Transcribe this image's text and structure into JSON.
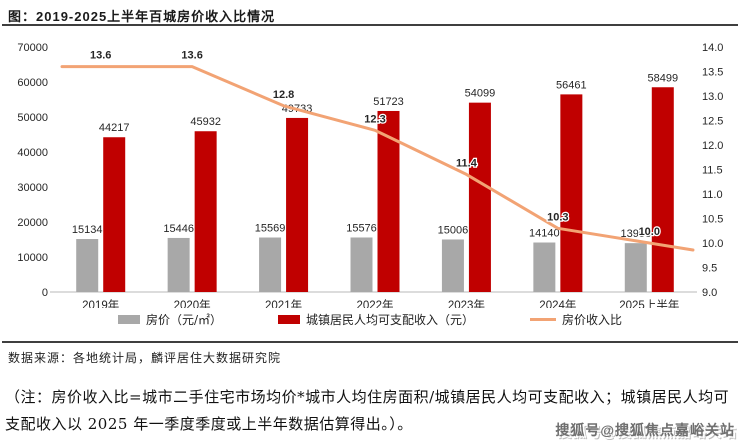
{
  "page": {
    "title": "图：2019-2025上半年百城房价收入比情况",
    "source": "数据来源：各地统计局，麟评居住大数据研究院",
    "note": "（注：房价收入比=城市二手住宅市场均价*城市人均住房面积/城镇居民人均可支配收入；城镇居民人均可支配收入以 2025 年一季度季度或上半年数据估算得出。）。",
    "watermark": "搜狐号@搜狐焦点嘉峪关站"
  },
  "chart_data": {
    "type": "bar",
    "subtype": "grouped-bars-with-line",
    "title": "2019-2025上半年百城房价收入比情况",
    "categories": [
      "2019年",
      "2020年",
      "2021年",
      "2022年",
      "2023年",
      "2024年",
      "2025上半年"
    ],
    "series": [
      {
        "name": "房价（元/㎡）",
        "type": "bar",
        "axis": "left",
        "color": "#a8a8a8",
        "values": [
          15134,
          15446,
          15569,
          15576,
          15006,
          14140,
          13956
        ]
      },
      {
        "name": "城镇居民人均可支配收入（元）",
        "type": "bar",
        "axis": "left",
        "color": "#c00000",
        "values": [
          44217,
          45932,
          49733,
          51723,
          54099,
          56461,
          58499
        ]
      },
      {
        "name": "房价收入比",
        "type": "line",
        "axis": "right",
        "color": "#f2a374",
        "values": [
          13.6,
          13.6,
          12.8,
          12.3,
          11.4,
          10.3,
          10.0
        ]
      }
    ],
    "left_axis": {
      "min": 0,
      "max": 70000,
      "step": 10000,
      "ticks": [
        "0",
        "10000",
        "20000",
        "30000",
        "40000",
        "50000",
        "60000",
        "70000"
      ]
    },
    "right_axis": {
      "min": 9.0,
      "max": 14.0,
      "step": 0.5,
      "ticks": [
        "9.0",
        "9.5",
        "10.0",
        "10.5",
        "11.0",
        "11.5",
        "12.0",
        "12.5",
        "13.0",
        "13.5",
        "14.0"
      ]
    },
    "grid": false,
    "legend_position": "bottom",
    "colors": {
      "bar_gray": "#a8a8a8",
      "bar_red": "#c00000",
      "line_orange": "#f2a374",
      "baseline": "#dcdcdc",
      "text": "#262626",
      "rule": "#3f3f3f"
    }
  }
}
